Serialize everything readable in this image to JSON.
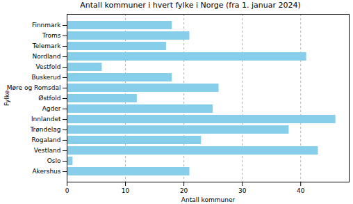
{
  "chart_data": {
    "type": "bar",
    "orientation": "horizontal",
    "title": "Antall kommuner i hvert fylke i Norge (fra 1. januar 2024)",
    "x_label": "Antall kommuner",
    "y_label": "Fylke",
    "categories": [
      "Finnmark",
      "Troms",
      "Telemark",
      "Nordland",
      "Vestfold",
      "Buskerud",
      "Møre og Romsdal",
      "Østfold",
      "Agder",
      "Innlandet",
      "Trøndelag",
      "Rogaland",
      "Vestland",
      "Oslo",
      "Akershus"
    ],
    "values": [
      18,
      21,
      17,
      41,
      6,
      18,
      26,
      12,
      25,
      46,
      38,
      23,
      43,
      1,
      21
    ],
    "color": "#87ceeb",
    "xlim": [
      0,
      48.3
    ],
    "xticks": [
      0,
      10,
      20,
      30,
      40
    ],
    "grid": true
  }
}
